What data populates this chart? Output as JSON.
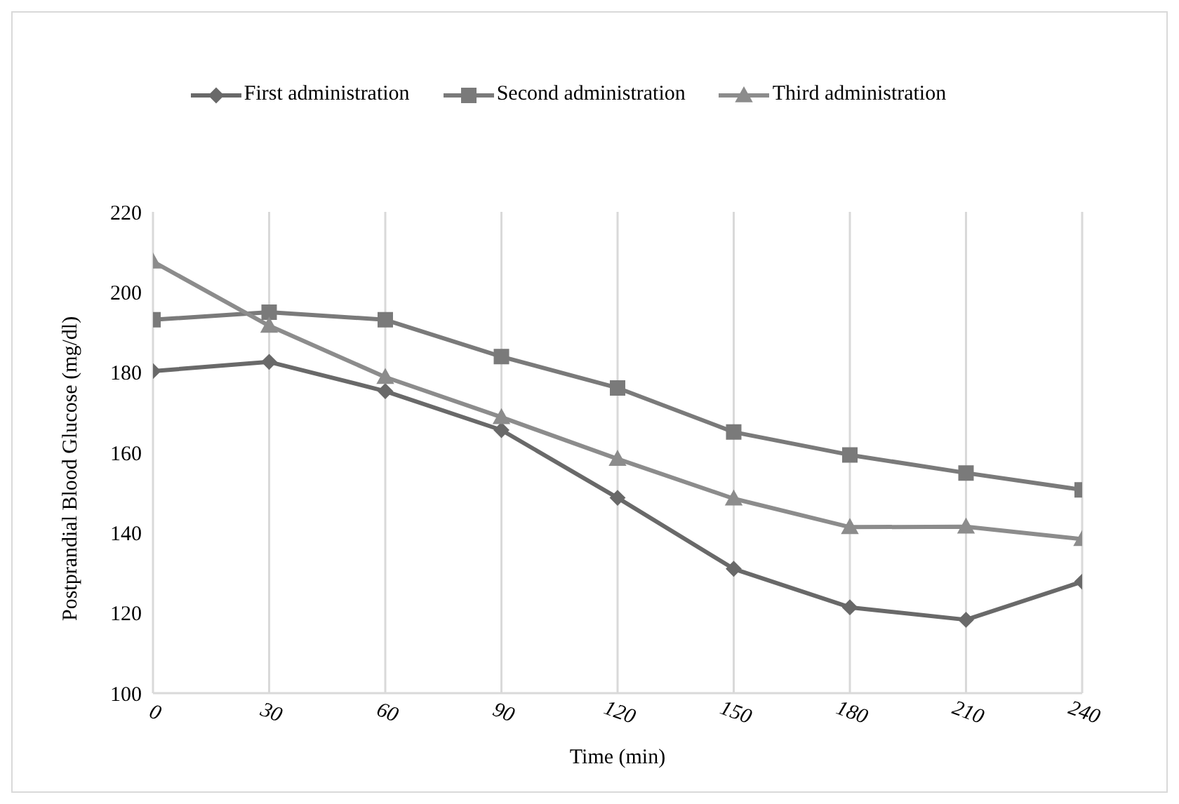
{
  "chart_data": {
    "type": "line",
    "xlabel": "Time (min)",
    "ylabel": "Postprandial Blood Glucose (mg/dl)",
    "x": [
      0,
      30,
      60,
      90,
      120,
      150,
      180,
      210,
      240
    ],
    "series": [
      {
        "name": "First administration",
        "color": "#696969",
        "marker": "diamond",
        "values": [
          180.3,
          182.6,
          175.3,
          165.6,
          148.7,
          131.0,
          121.4,
          118.3,
          127.8
        ]
      },
      {
        "name": "Second administration",
        "color": "#7a7a7a",
        "marker": "square",
        "values": [
          193.1,
          195.0,
          193.1,
          183.9,
          176.1,
          165.1,
          159.4,
          154.9,
          150.7
        ]
      },
      {
        "name": "Third administration",
        "color": "#8c8c8c",
        "marker": "triangle",
        "values": [
          207.6,
          191.6,
          178.8,
          168.8,
          158.4,
          148.5,
          141.4,
          141.5,
          138.4
        ]
      }
    ],
    "xlim": [
      0,
      240
    ],
    "xticks": [
      0,
      30,
      60,
      90,
      120,
      150,
      180,
      210,
      240
    ],
    "ylim": [
      100,
      220
    ],
    "yticks": [
      100,
      120,
      140,
      160,
      180,
      200,
      220
    ],
    "grid": "x",
    "legend": "top",
    "line_style": "solid"
  }
}
